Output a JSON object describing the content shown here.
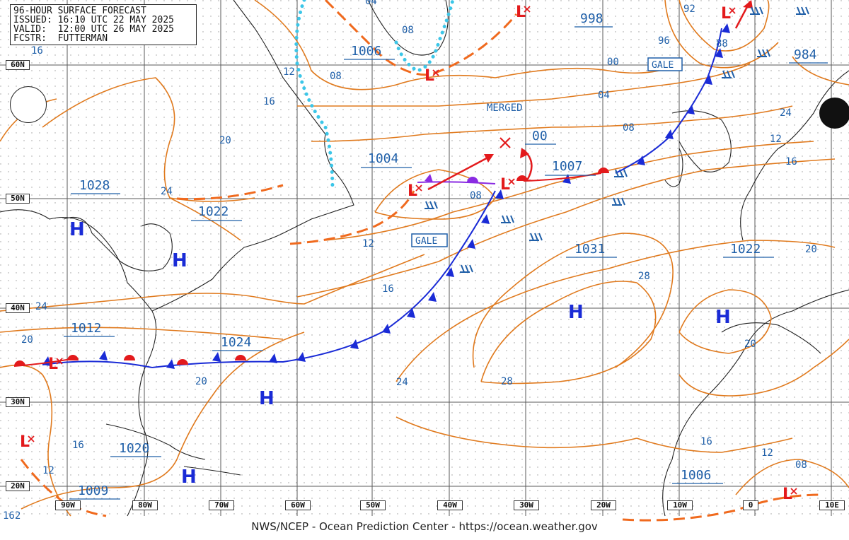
{
  "header": {
    "lines": [
      "96-HOUR SURFACE FORECAST",
      "ISSUED: 16:10 UTC 22 MAY 2025",
      "VALID:  12:00 UTC 26 MAY 2025",
      "FCSTR:  FUTTERMAN"
    ]
  },
  "footer": "NWS/NCEP - Ocean Prediction Center - https://ocean.weather.gov",
  "lat_labels": [
    "60N",
    "50N",
    "40N",
    "30N",
    "20N"
  ],
  "lon_labels": [
    "90W",
    "80W",
    "70W",
    "60W",
    "50W",
    "40W",
    "30W",
    "20W",
    "10W",
    "0",
    "10E"
  ],
  "pressure_centers": [
    "1028",
    "1022",
    "1004",
    "1006",
    "998",
    "984",
    "1007",
    "00",
    "1031",
    "1022",
    "1012",
    "1024",
    "1020",
    "1009",
    "1006"
  ],
  "high_symbol": "H",
  "low_symbol": "L",
  "isobar_labels": [
    "16",
    "12",
    "16",
    "20",
    "24",
    "08",
    "04",
    "00",
    "08",
    "12",
    "16",
    "20",
    "08",
    "12",
    "16",
    "20",
    "24",
    "28",
    "28",
    "24",
    "24",
    "20",
    "16",
    "12",
    "16",
    "20",
    "24",
    "92",
    "96",
    "88",
    "08",
    "04",
    "08",
    "12",
    "16",
    "20",
    "162"
  ],
  "annotations": {
    "merged": "MERGED",
    "gale_labels": [
      "GALE",
      "GALE"
    ]
  },
  "colors": {
    "isobar": "#e07a1e",
    "warm_front": "#e31a1c",
    "cold_front": "#1a2bd6",
    "occluded": "#8a2be2",
    "ice_edge": "#3cc6e8",
    "pressure_text": "#1f5fa8",
    "coastline": "#222222",
    "grid": "#555555"
  }
}
